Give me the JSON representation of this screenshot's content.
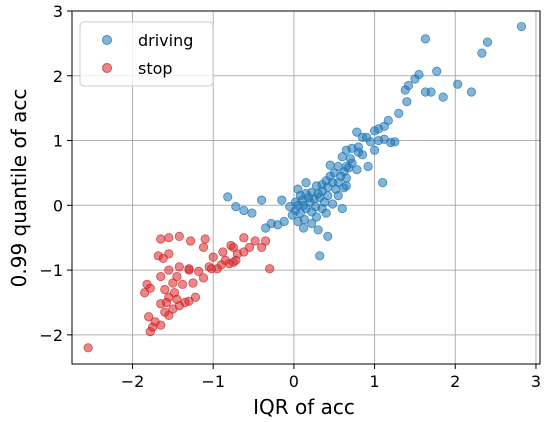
{
  "chart_data": {
    "type": "scatter",
    "title": "",
    "xlabel": "IQR of acc",
    "ylabel": "0.99 quantile of acc",
    "xlim": [
      -2.75,
      3.05
    ],
    "ylim": [
      -2.45,
      3.0
    ],
    "xticks": [
      -2,
      -1,
      0,
      1,
      2,
      3
    ],
    "yticks": [
      -2,
      -1,
      0,
      1,
      2,
      3
    ],
    "xtick_labels": [
      "−2",
      "−1",
      "0",
      "1",
      "2",
      "3"
    ],
    "ytick_labels": [
      "−2",
      "−1",
      "0",
      "1",
      "2",
      "3"
    ],
    "grid": true,
    "legend_position": "top-left",
    "series": [
      {
        "name": "driving",
        "color": "#1f77b4",
        "points": [
          [
            2.82,
            2.76
          ],
          [
            2.4,
            2.52
          ],
          [
            2.33,
            2.35
          ],
          [
            1.63,
            2.57
          ],
          [
            1.77,
            2.07
          ],
          [
            1.55,
            2.02
          ],
          [
            1.5,
            1.95
          ],
          [
            1.42,
            1.85
          ],
          [
            1.38,
            1.78
          ],
          [
            2.03,
            1.87
          ],
          [
            1.85,
            1.67
          ],
          [
            1.63,
            1.75
          ],
          [
            1.7,
            1.75
          ],
          [
            2.2,
            1.75
          ],
          [
            1.4,
            1.6
          ],
          [
            1.3,
            1.42
          ],
          [
            1.17,
            1.31
          ],
          [
            1.12,
            1.22
          ],
          [
            1.05,
            1.18
          ],
          [
            1.0,
            1.15
          ],
          [
            0.78,
            1.13
          ],
          [
            0.85,
            1.05
          ],
          [
            0.9,
            1.05
          ],
          [
            1.12,
            1.02
          ],
          [
            1.05,
            1.0
          ],
          [
            0.95,
            0.98
          ],
          [
            1.2,
            0.97
          ],
          [
            1.25,
            0.98
          ],
          [
            0.72,
            0.88
          ],
          [
            0.8,
            0.9
          ],
          [
            0.65,
            0.85
          ],
          [
            0.8,
            0.82
          ],
          [
            1.0,
            0.85
          ],
          [
            0.6,
            0.75
          ],
          [
            0.7,
            0.72
          ],
          [
            0.72,
            0.65
          ],
          [
            0.65,
            0.6
          ],
          [
            0.55,
            0.6
          ],
          [
            0.92,
            0.6
          ],
          [
            0.68,
            0.58
          ],
          [
            0.62,
            0.52
          ],
          [
            0.5,
            0.5
          ],
          [
            0.45,
            0.45
          ],
          [
            0.58,
            0.45
          ],
          [
            0.65,
            0.42
          ],
          [
            0.4,
            0.38
          ],
          [
            0.48,
            0.35
          ],
          [
            0.55,
            0.35
          ],
          [
            0.15,
            0.35
          ],
          [
            0.35,
            0.32
          ],
          [
            1.1,
            0.35
          ],
          [
            0.28,
            0.3
          ],
          [
            0.42,
            0.28
          ],
          [
            0.52,
            0.25
          ],
          [
            0.62,
            0.27
          ],
          [
            0.35,
            0.22
          ],
          [
            0.22,
            0.2
          ],
          [
            0.3,
            0.18
          ],
          [
            0.15,
            0.18
          ],
          [
            0.42,
            0.15
          ],
          [
            0.08,
            0.15
          ],
          [
            0.18,
            0.12
          ],
          [
            0.25,
            0.1
          ],
          [
            0.32,
            0.12
          ],
          [
            0.1,
            0.08
          ],
          [
            0.02,
            0.05
          ],
          [
            0.2,
            0.05
          ],
          [
            0.38,
            0.05
          ],
          [
            0.48,
            0.02
          ],
          [
            0.05,
            0.0
          ],
          [
            0.12,
            0.0
          ],
          [
            0.27,
            -0.02
          ],
          [
            -0.05,
            -0.02
          ],
          [
            0.15,
            -0.05
          ],
          [
            0.35,
            -0.05
          ],
          [
            0.02,
            -0.08
          ],
          [
            0.22,
            -0.1
          ],
          [
            0.08,
            -0.12
          ],
          [
            0.4,
            -0.12
          ],
          [
            0.55,
            0.15
          ],
          [
            0.65,
            0.3
          ],
          [
            -0.02,
            -0.15
          ],
          [
            0.28,
            -0.18
          ],
          [
            0.13,
            -0.22
          ],
          [
            -0.12,
            -0.25
          ],
          [
            0.05,
            -0.25
          ],
          [
            0.22,
            -0.28
          ],
          [
            -0.28,
            -0.28
          ],
          [
            -0.2,
            -0.3
          ],
          [
            0.3,
            -0.38
          ],
          [
            -0.35,
            -0.35
          ],
          [
            0.12,
            -0.35
          ],
          [
            0.42,
            -0.48
          ],
          [
            0.32,
            -0.78
          ],
          [
            -0.52,
            -0.12
          ],
          [
            -0.82,
            0.13
          ],
          [
            -0.72,
            -0.02
          ],
          [
            -0.62,
            -0.08
          ],
          [
            -0.4,
            0.08
          ],
          [
            0.6,
            -0.05
          ],
          [
            -0.15,
            0.08
          ],
          [
            0.05,
            0.25
          ],
          [
            0.45,
            0.62
          ],
          [
            0.78,
            0.55
          ],
          [
            0.85,
            0.78
          ]
        ]
      },
      {
        "name": "stop",
        "color": "#d62728",
        "points": [
          [
            -2.55,
            -2.2
          ],
          [
            -1.78,
            -1.95
          ],
          [
            -1.75,
            -1.88
          ],
          [
            -1.72,
            -1.8
          ],
          [
            -1.65,
            -1.85
          ],
          [
            -1.8,
            -1.72
          ],
          [
            -1.6,
            -1.65
          ],
          [
            -1.55,
            -1.7
          ],
          [
            -1.5,
            -1.6
          ],
          [
            -1.42,
            -1.55
          ],
          [
            -1.65,
            -1.52
          ],
          [
            -1.58,
            -1.5
          ],
          [
            -1.35,
            -1.5
          ],
          [
            -1.45,
            -1.45
          ],
          [
            -1.55,
            -1.42
          ],
          [
            -1.3,
            -1.48
          ],
          [
            -1.22,
            -1.42
          ],
          [
            -1.48,
            -1.35
          ],
          [
            -1.6,
            -1.3
          ],
          [
            -1.78,
            -1.28
          ],
          [
            -1.85,
            -1.35
          ],
          [
            -1.82,
            -1.22
          ],
          [
            -1.5,
            -1.2
          ],
          [
            -1.38,
            -1.22
          ],
          [
            -1.25,
            -1.2
          ],
          [
            -1.12,
            -1.12
          ],
          [
            -1.45,
            -1.1
          ],
          [
            -1.65,
            -1.1
          ],
          [
            -1.3,
            -1.0
          ],
          [
            -1.55,
            -1.0
          ],
          [
            -1.18,
            -1.02
          ],
          [
            -1.02,
            -0.98
          ],
          [
            -0.95,
            -0.98
          ],
          [
            -1.05,
            -0.95
          ],
          [
            -1.42,
            -0.95
          ],
          [
            -0.9,
            -0.92
          ],
          [
            -0.8,
            -0.9
          ],
          [
            -0.75,
            -0.88
          ],
          [
            -0.72,
            -0.85
          ],
          [
            -0.85,
            -0.85
          ],
          [
            -1.0,
            -0.8
          ],
          [
            -0.7,
            -0.75
          ],
          [
            -0.62,
            -0.72
          ],
          [
            -1.55,
            -0.75
          ],
          [
            -1.68,
            -0.78
          ],
          [
            -1.62,
            -0.82
          ],
          [
            -0.88,
            -0.72
          ],
          [
            -0.55,
            -0.65
          ],
          [
            -0.75,
            -0.65
          ],
          [
            -0.4,
            -0.65
          ],
          [
            -1.12,
            -0.65
          ],
          [
            -0.48,
            -0.55
          ],
          [
            -0.35,
            -0.55
          ],
          [
            -0.62,
            -0.5
          ],
          [
            -1.1,
            -0.52
          ],
          [
            -1.28,
            -0.55
          ],
          [
            -1.55,
            -0.5
          ],
          [
            -1.42,
            -0.48
          ],
          [
            -1.65,
            -0.52
          ],
          [
            -0.3,
            -0.98
          ],
          [
            -0.78,
            -0.62
          ],
          [
            -1.3,
            -0.98
          ]
        ]
      }
    ]
  }
}
